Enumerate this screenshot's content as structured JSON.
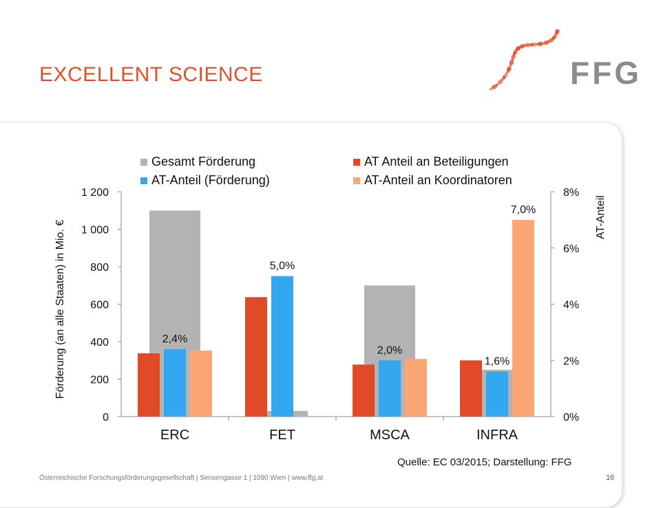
{
  "slide": {
    "title": "EXCELLENT SCIENCE",
    "logo_text": "FFG",
    "source": "Quelle: EC 03/2015; Darstellung: FFG",
    "footer": "Österreichische Forschungsförderungsgesellschaft | Sensengasse 1 | 1090 Wien | www.ffg.at",
    "page_number": "16"
  },
  "colors": {
    "title": "#e0502a",
    "logo_gray": "#8c8c8c",
    "logo_dots": "#e0502a"
  },
  "chart_data": {
    "type": "bar",
    "categories": [
      "ERC",
      "FET",
      "MSCA",
      "INFRA"
    ],
    "ylabel": "Förderung (an alle Staaten) in Mio. €",
    "y2label": "AT-Anteil",
    "ylim": [
      0,
      1200
    ],
    "yticks": [
      0,
      200,
      400,
      600,
      800,
      1000,
      1200
    ],
    "ytick_labels": [
      "0",
      "200",
      "400",
      "600",
      "800",
      "1 000",
      "1 200"
    ],
    "y2lim": [
      0,
      8
    ],
    "y2ticks": [
      0,
      2,
      4,
      6,
      8
    ],
    "y2tick_labels": [
      "0%",
      "2%",
      "4%",
      "6%",
      "8%"
    ],
    "grid": false,
    "legend_position": "top",
    "series": [
      {
        "name": "Gesamt Förderung",
        "axis": "left",
        "color": "#b3b3b3",
        "values": [
          1100,
          30,
          700,
          250
        ]
      },
      {
        "name": "AT Anteil an Beteiligungen",
        "axis": "right",
        "color": "#e04a27",
        "values": [
          2.25,
          4.25,
          1.85,
          2.0
        ]
      },
      {
        "name": "AT-Anteil (Förderung)",
        "axis": "right",
        "color": "#33a8f0",
        "values": [
          2.4,
          5.0,
          2.0,
          1.6
        ]
      },
      {
        "name": "AT-Anteil an Koordinatoren",
        "axis": "right",
        "color": "#fba674",
        "values": [
          2.35,
          0,
          2.05,
          7.0
        ]
      }
    ],
    "data_labels": [
      {
        "category": "ERC",
        "series": "AT-Anteil (Förderung)",
        "text": "2,4%"
      },
      {
        "category": "FET",
        "series": "AT-Anteil (Förderung)",
        "text": "5,0%"
      },
      {
        "category": "MSCA",
        "series": "AT-Anteil (Förderung)",
        "text": "2,0%"
      },
      {
        "category": "INFRA",
        "series": "AT-Anteil (Förderung)",
        "text": "1,6%"
      },
      {
        "category": "INFRA",
        "series": "AT-Anteil an Koordinatoren",
        "text": "7,0%"
      }
    ]
  }
}
